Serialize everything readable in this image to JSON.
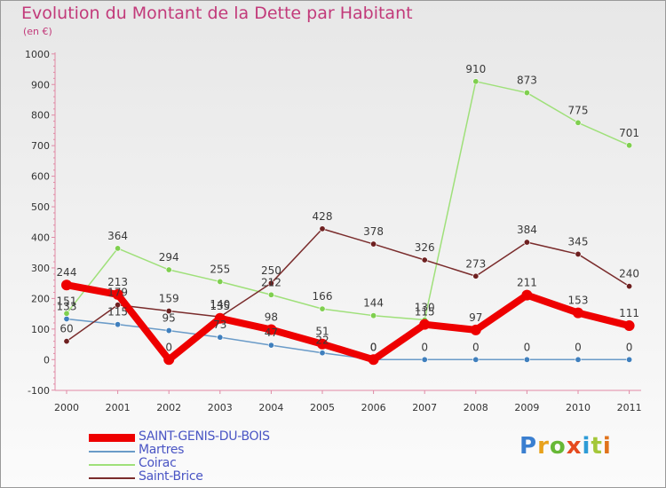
{
  "title": "Evolution du Montant de la Dette par Habitant",
  "unit_label": "(en €)",
  "logo": {
    "letters": [
      "P",
      "r",
      "o",
      "x",
      "i",
      "t",
      "i"
    ],
    "colors": [
      "#3a7fd0",
      "#e8a21c",
      "#67b836",
      "#e54a1f",
      "#2d9bd6",
      "#a4c739",
      "#e0731c"
    ]
  },
  "chart_data": {
    "type": "line",
    "x": [
      "2000",
      "2001",
      "2002",
      "2003",
      "2004",
      "2005",
      "2006",
      "2007",
      "2008",
      "2009",
      "2010",
      "2011"
    ],
    "ylim": [
      -100,
      1000
    ],
    "yticks": [
      "-100",
      "0",
      "100",
      "200",
      "300",
      "400",
      "500",
      "600",
      "700",
      "800",
      "900",
      "1000"
    ],
    "grid": false,
    "legend_position": "bottom-left",
    "series": [
      {
        "name": "Martres",
        "color": "#6a9bc8",
        "marker": "#3f7fbd",
        "values": [
          133,
          115,
          95,
          73,
          47,
          22,
          0,
          0,
          0,
          0,
          0,
          0
        ],
        "labels": [
          "133",
          "115",
          "95",
          "73",
          "47",
          "22",
          "0",
          "0",
          "0",
          "0",
          "0",
          "0"
        ]
      },
      {
        "name": "Coirac",
        "color": "#9fe07a",
        "marker": "#7fcf4f",
        "values": [
          151,
          364,
          294,
          255,
          212,
          166,
          144,
          130,
          910,
          873,
          775,
          701
        ],
        "labels": [
          "151",
          "364",
          "294",
          "255",
          "212",
          "166",
          "144",
          "130",
          "910",
          "873",
          "775",
          "701"
        ]
      },
      {
        "name": "Saint-Brice",
        "color": "#7a2c2c",
        "marker": "#6e2020",
        "values": [
          60,
          179,
          159,
          140,
          250,
          428,
          378,
          326,
          273,
          384,
          345,
          240
        ],
        "labels": [
          "60",
          "179",
          "159",
          "140",
          "250",
          "428",
          "378",
          "326",
          "273",
          "384",
          "345",
          "240"
        ]
      },
      {
        "name": "SAINT-GENIS-DU-BOIS",
        "color": "#ee0000",
        "marker": "#ee0000",
        "values": [
          244,
          213,
          0,
          135,
          98,
          51,
          0,
          115,
          97,
          211,
          153,
          111
        ],
        "labels": [
          "244",
          "213",
          "0",
          "135",
          "98",
          "51",
          "0",
          "115",
          "97",
          "211",
          "153",
          "111"
        ]
      }
    ],
    "legend": [
      {
        "name": "SAINT-GENIS-DU-BOIS",
        "color": "#ee0000",
        "thick": true
      },
      {
        "name": "Martres",
        "color": "#6a9bc8",
        "thick": false
      },
      {
        "name": "Coirac",
        "color": "#9fe07a",
        "thick": false
      },
      {
        "name": "Saint-Brice",
        "color": "#7a2c2c",
        "thick": false
      }
    ]
  }
}
